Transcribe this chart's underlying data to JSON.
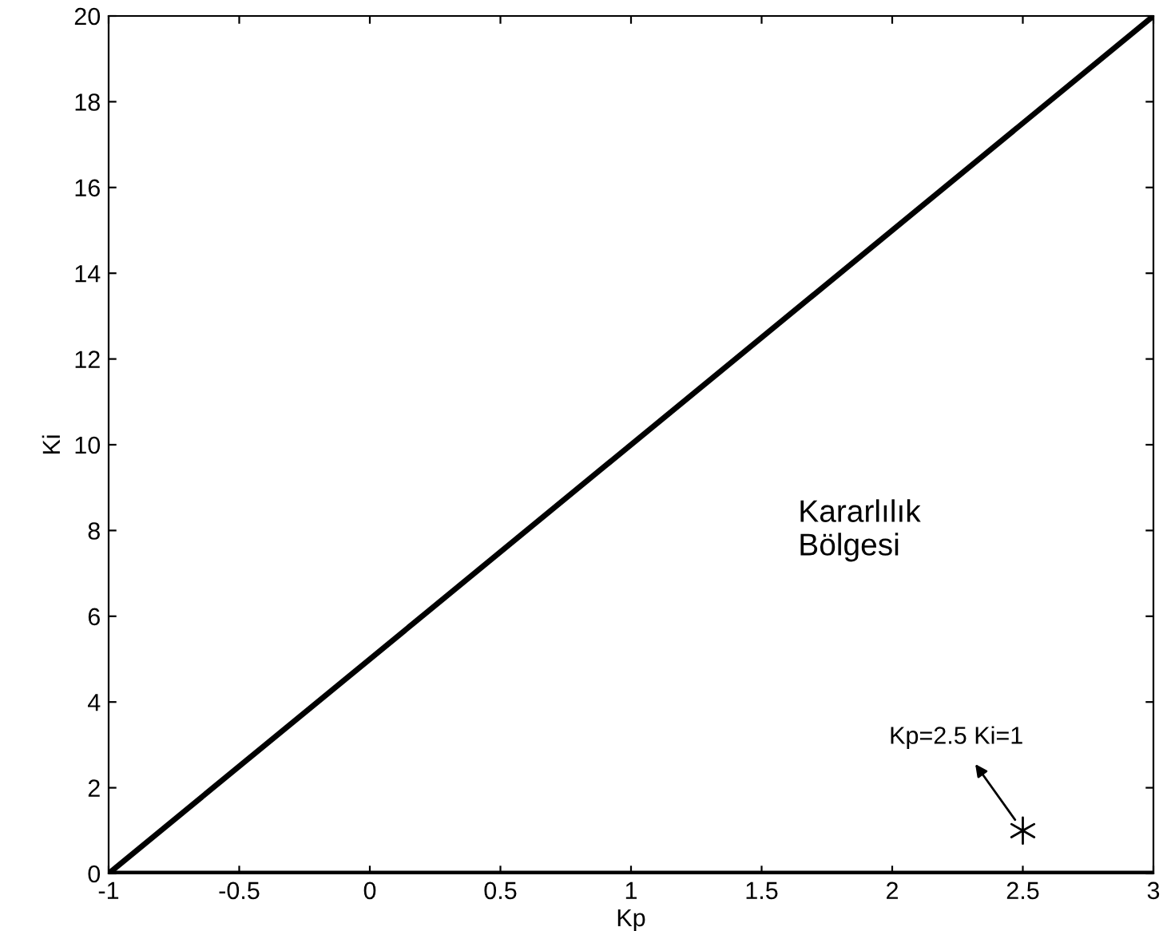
{
  "chart_data": {
    "type": "line",
    "xlabel": "Kp",
    "ylabel": "Ki",
    "xlim": [
      -1,
      3
    ],
    "ylim": [
      0,
      20
    ],
    "xticks": [
      -1,
      -0.5,
      0,
      0.5,
      1,
      1.5,
      2,
      2.5,
      3
    ],
    "yticks": [
      0,
      2,
      4,
      6,
      8,
      10,
      12,
      14,
      16,
      18,
      20
    ],
    "grid": false,
    "series": [
      {
        "color": "#000000",
        "x": [
          -1,
          3
        ],
        "values": [
          0,
          20
        ]
      },
      {
        "color": "#000000",
        "x": [
          -1,
          3
        ],
        "values": [
          0,
          0
        ]
      },
      {
        "type": "scatter",
        "color": "#000000",
        "marker": "cross",
        "x": [
          2.5
        ],
        "values": [
          1
        ]
      }
    ],
    "annotations": [
      {
        "text": "Kp=2.5 Ki=1",
        "x": 2.5,
        "y": 1
      },
      "Kararlılık\nBölgesi"
    ]
  }
}
